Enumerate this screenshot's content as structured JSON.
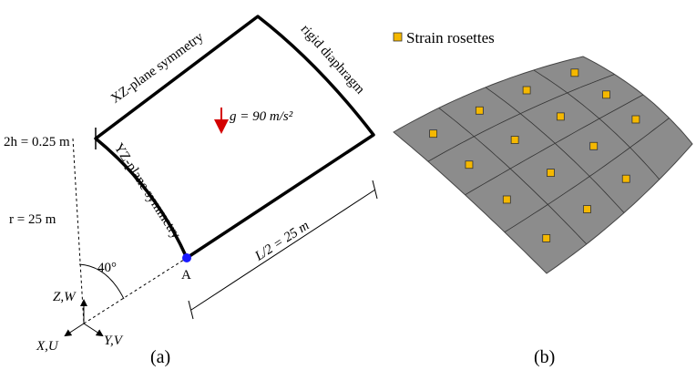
{
  "panel_a": {
    "edge_top_label": "XZ-plane symmetry",
    "edge_right_label": "rigid diaphragm",
    "edge_left_label": "YZ-plane symmetry",
    "thickness_label": "2h = 0.25 m",
    "gravity_label": "g = 90 m/s²",
    "radius_label": "r = 25 m",
    "angle_label": "40°",
    "point_label": "A",
    "length_label": "L/2 = 25 m",
    "axis_z_label": "Z,W",
    "axis_x_label": "X,U",
    "axis_y_label": "Y,V",
    "caption": "(a)"
  },
  "panel_b": {
    "legend_label": "Strain rosettes",
    "caption": "(b)"
  }
}
